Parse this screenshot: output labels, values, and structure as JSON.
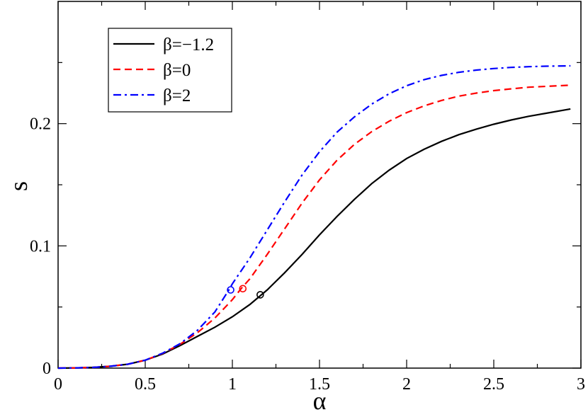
{
  "chart_data": {
    "type": "line",
    "xlabel": "α",
    "ylabel": "s",
    "xlim": [
      0,
      3
    ],
    "ylim": [
      0,
      0.3
    ],
    "x_ticks": [
      "0",
      "0.5",
      "1",
      "1.5",
      "2",
      "2.5",
      "3"
    ],
    "y_ticks": [
      "0",
      "0.1",
      "0.2"
    ],
    "grid": false,
    "legend_position": "top-left",
    "series": [
      {
        "name": "β=−1.2",
        "color": "#000000",
        "dash": "solid",
        "x": [
          0,
          0.1,
          0.2,
          0.3,
          0.4,
          0.5,
          0.6,
          0.7,
          0.8,
          0.9,
          1.0,
          1.1,
          1.2,
          1.3,
          1.4,
          1.5,
          1.6,
          1.7,
          1.8,
          1.9,
          2.0,
          2.1,
          2.2,
          2.3,
          2.4,
          2.5,
          2.6,
          2.7,
          2.8,
          2.94
        ],
        "y": [
          0,
          0.0002,
          0.0006,
          0.0015,
          0.0032,
          0.0065,
          0.0115,
          0.0185,
          0.026,
          0.0335,
          0.042,
          0.052,
          0.064,
          0.078,
          0.093,
          0.109,
          0.124,
          0.138,
          0.151,
          0.162,
          0.1715,
          0.179,
          0.1855,
          0.191,
          0.1955,
          0.1995,
          0.203,
          0.206,
          0.2085,
          0.212
        ]
      },
      {
        "name": "β=0",
        "color": "#ff0000",
        "dash": "dashed",
        "x": [
          0,
          0.1,
          0.2,
          0.3,
          0.4,
          0.5,
          0.6,
          0.7,
          0.8,
          0.9,
          1.0,
          1.05,
          1.1,
          1.2,
          1.3,
          1.4,
          1.5,
          1.6,
          1.7,
          1.8,
          1.9,
          2.0,
          2.1,
          2.2,
          2.3,
          2.4,
          2.5,
          2.6,
          2.7,
          2.8,
          2.94
        ],
        "y": [
          0,
          0.0002,
          0.0006,
          0.0015,
          0.0032,
          0.0065,
          0.012,
          0.0195,
          0.029,
          0.041,
          0.056,
          0.065,
          0.073,
          0.093,
          0.114,
          0.135,
          0.154,
          0.17,
          0.183,
          0.1935,
          0.202,
          0.209,
          0.2145,
          0.219,
          0.2225,
          0.225,
          0.227,
          0.2285,
          0.2298,
          0.2305,
          0.2315
        ]
      },
      {
        "name": "β=2",
        "color": "#0000ff",
        "dash": "dash-dot",
        "x": [
          0,
          0.1,
          0.2,
          0.3,
          0.4,
          0.5,
          0.6,
          0.7,
          0.8,
          0.9,
          0.98,
          1.0,
          1.1,
          1.2,
          1.3,
          1.4,
          1.5,
          1.6,
          1.7,
          1.8,
          1.9,
          2.0,
          2.1,
          2.2,
          2.3,
          2.4,
          2.5,
          2.6,
          2.7,
          2.8,
          2.94
        ],
        "y": [
          0,
          0.0002,
          0.0006,
          0.0015,
          0.0032,
          0.0065,
          0.0122,
          0.02,
          0.031,
          0.046,
          0.064,
          0.069,
          0.09,
          0.113,
          0.136,
          0.158,
          0.177,
          0.193,
          0.2055,
          0.216,
          0.2245,
          0.231,
          0.236,
          0.2395,
          0.242,
          0.2438,
          0.2451,
          0.246,
          0.2466,
          0.247,
          0.2473
        ]
      }
    ],
    "markers": [
      {
        "series": "β=−1.2",
        "x": 1.16,
        "y": 0.06,
        "color": "#000000"
      },
      {
        "series": "β=0",
        "x": 1.06,
        "y": 0.065,
        "color": "#ff0000"
      },
      {
        "series": "β=2",
        "x": 0.99,
        "y": 0.064,
        "color": "#0000ff"
      }
    ]
  }
}
